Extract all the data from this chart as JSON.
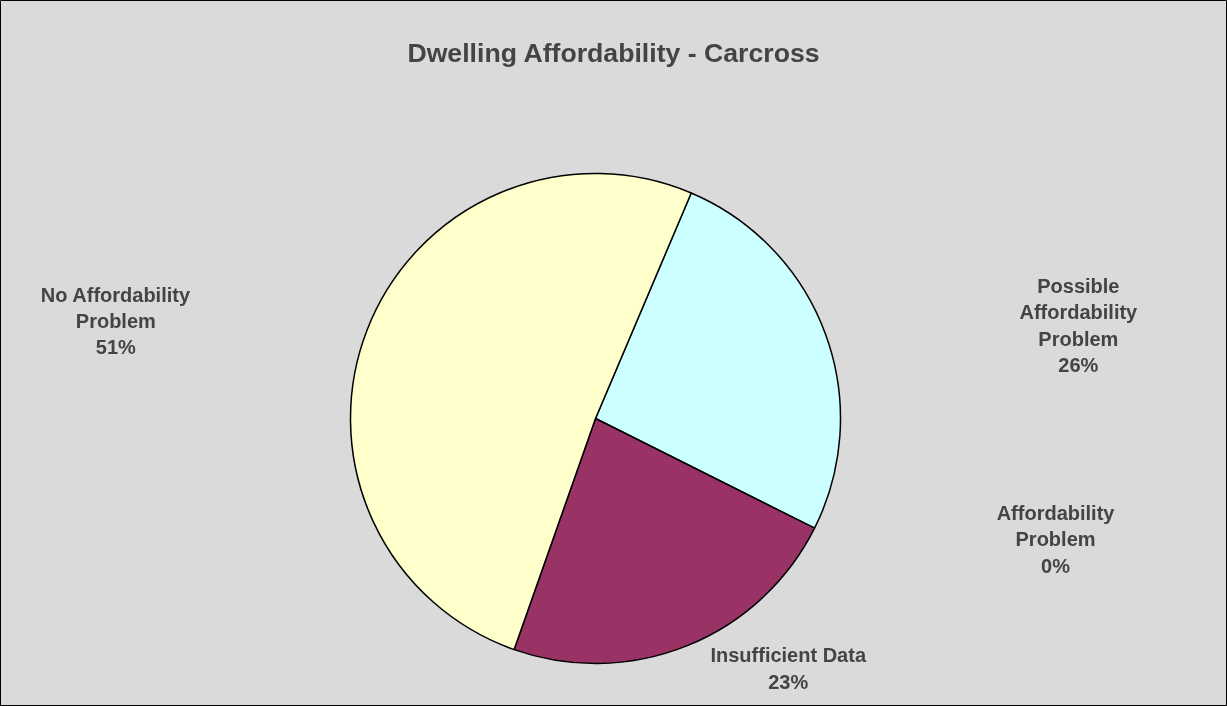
{
  "chart_data": {
    "type": "pie",
    "title": "Dwelling Affordability - Carcross",
    "categories": [
      "Possible Affordability Problem",
      "Affordability Problem",
      "Insufficient Data",
      "No Affordability Problem"
    ],
    "values": [
      26,
      0,
      23,
      51
    ],
    "colors": [
      "#ccffff",
      "#ffcc99",
      "#993366",
      "#ffffcc"
    ],
    "value_labels": [
      "26%",
      "0%",
      "23%",
      "51%"
    ]
  }
}
